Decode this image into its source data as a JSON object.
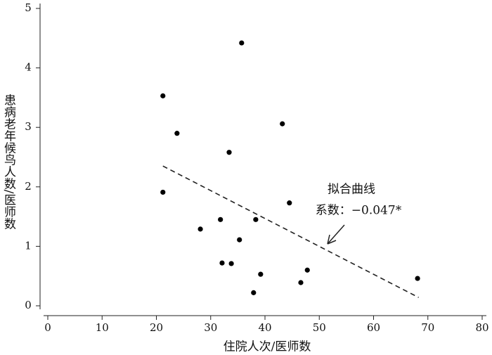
{
  "chart_data": {
    "type": "scatter",
    "x_label": "住院人次/医师数",
    "y_label": "患病老年候鸟人数/医师数",
    "series": [
      {
        "name": "患病老年候鸟人数/医师数",
        "color": "#000000",
        "x": [
          21.2,
          35.7,
          23.8,
          43.2,
          33.4,
          21.2,
          44.5,
          28.1,
          31.8,
          38.3,
          35.3,
          32.1,
          33.8,
          39.2,
          47.8,
          46.6,
          37.9,
          68.1
        ],
        "values": [
          3.53,
          4.42,
          2.9,
          3.06,
          2.58,
          1.91,
          1.73,
          1.29,
          1.45,
          1.45,
          1.11,
          0.72,
          0.71,
          0.53,
          0.6,
          0.39,
          0.22,
          0.46
        ]
      }
    ],
    "fit_line": {
      "x": [
        21.2,
        68.3
      ],
      "values": [
        2.35,
        0.14
      ],
      "color": "#222222"
    },
    "annotation_lines": [
      "拟合曲线",
      "系数：−0.047*"
    ],
    "xlim": [
      0,
      80
    ],
    "xticks": [
      0,
      10,
      20,
      30,
      40,
      50,
      60,
      70,
      80
    ],
    "ylim": [
      0,
      5
    ],
    "yticks": [
      0,
      1,
      2,
      3,
      4,
      5
    ]
  }
}
